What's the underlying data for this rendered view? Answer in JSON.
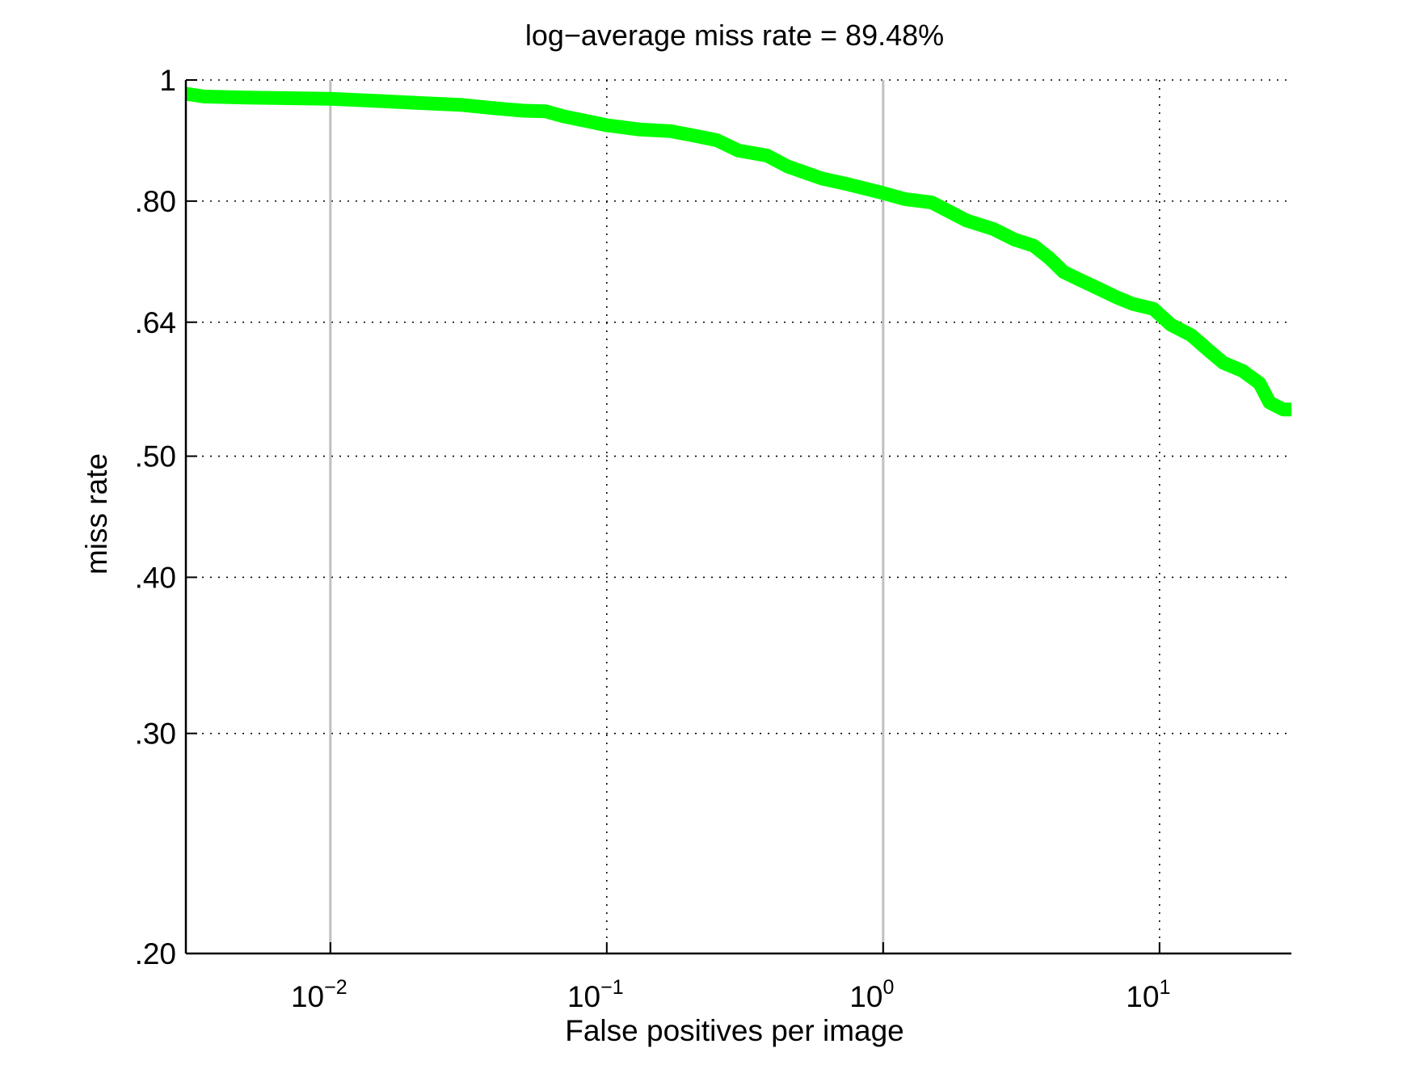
{
  "chart_data": {
    "type": "line",
    "title": "log−average miss rate = 89.48%",
    "xlabel": "False positives per image",
    "ylabel": "miss rate",
    "x_scale": "log",
    "y_scale": "log",
    "xlim": [
      0.003,
      30
    ],
    "ylim": [
      0.2,
      1
    ],
    "x_ticks": [
      {
        "value": 0.01,
        "base": "10",
        "exp": "−2"
      },
      {
        "value": 0.1,
        "base": "10",
        "exp": "−1"
      },
      {
        "value": 1,
        "base": "10",
        "exp": "0"
      },
      {
        "value": 10,
        "base": "10",
        "exp": "1"
      }
    ],
    "y_ticks": [
      {
        "value": 0.2,
        "label": ".20"
      },
      {
        "value": 0.3,
        "label": ".30"
      },
      {
        "value": 0.4,
        "label": ".40"
      },
      {
        "value": 0.5,
        "label": ".50"
      },
      {
        "value": 0.64,
        "label": ".64"
      },
      {
        "value": 0.8,
        "label": ".80"
      },
      {
        "value": 1,
        "label": "1"
      }
    ],
    "grid": "dotted, with solid gray lines at 10^-2 and 10^0",
    "series": [
      {
        "color": "#00ff00",
        "points": [
          [
            0.003,
            0.975
          ],
          [
            0.0035,
            0.97
          ],
          [
            0.005,
            0.968
          ],
          [
            0.01,
            0.966
          ],
          [
            0.015,
            0.962
          ],
          [
            0.02,
            0.959
          ],
          [
            0.03,
            0.955
          ],
          [
            0.04,
            0.949
          ],
          [
            0.05,
            0.945
          ],
          [
            0.06,
            0.944
          ],
          [
            0.07,
            0.935
          ],
          [
            0.085,
            0.927
          ],
          [
            0.1,
            0.92
          ],
          [
            0.13,
            0.913
          ],
          [
            0.17,
            0.91
          ],
          [
            0.2,
            0.904
          ],
          [
            0.25,
            0.895
          ],
          [
            0.3,
            0.878
          ],
          [
            0.38,
            0.87
          ],
          [
            0.45,
            0.853
          ],
          [
            0.6,
            0.834
          ],
          [
            0.75,
            0.825
          ],
          [
            1.0,
            0.812
          ],
          [
            1.2,
            0.803
          ],
          [
            1.5,
            0.798
          ],
          [
            2.0,
            0.772
          ],
          [
            2.5,
            0.76
          ],
          [
            3.0,
            0.745
          ],
          [
            3.5,
            0.737
          ],
          [
            4.0,
            0.72
          ],
          [
            4.5,
            0.702
          ],
          [
            5.0,
            0.694
          ],
          [
            6.0,
            0.681
          ],
          [
            7.0,
            0.67
          ],
          [
            8.0,
            0.662
          ],
          [
            9.5,
            0.656
          ],
          [
            11.0,
            0.637
          ],
          [
            13.0,
            0.625
          ],
          [
            15.0,
            0.608
          ],
          [
            17.0,
            0.594
          ],
          [
            20.0,
            0.585
          ],
          [
            23.0,
            0.572
          ],
          [
            25.0,
            0.552
          ],
          [
            28.0,
            0.545
          ],
          [
            30.0,
            0.545
          ]
        ]
      }
    ]
  }
}
